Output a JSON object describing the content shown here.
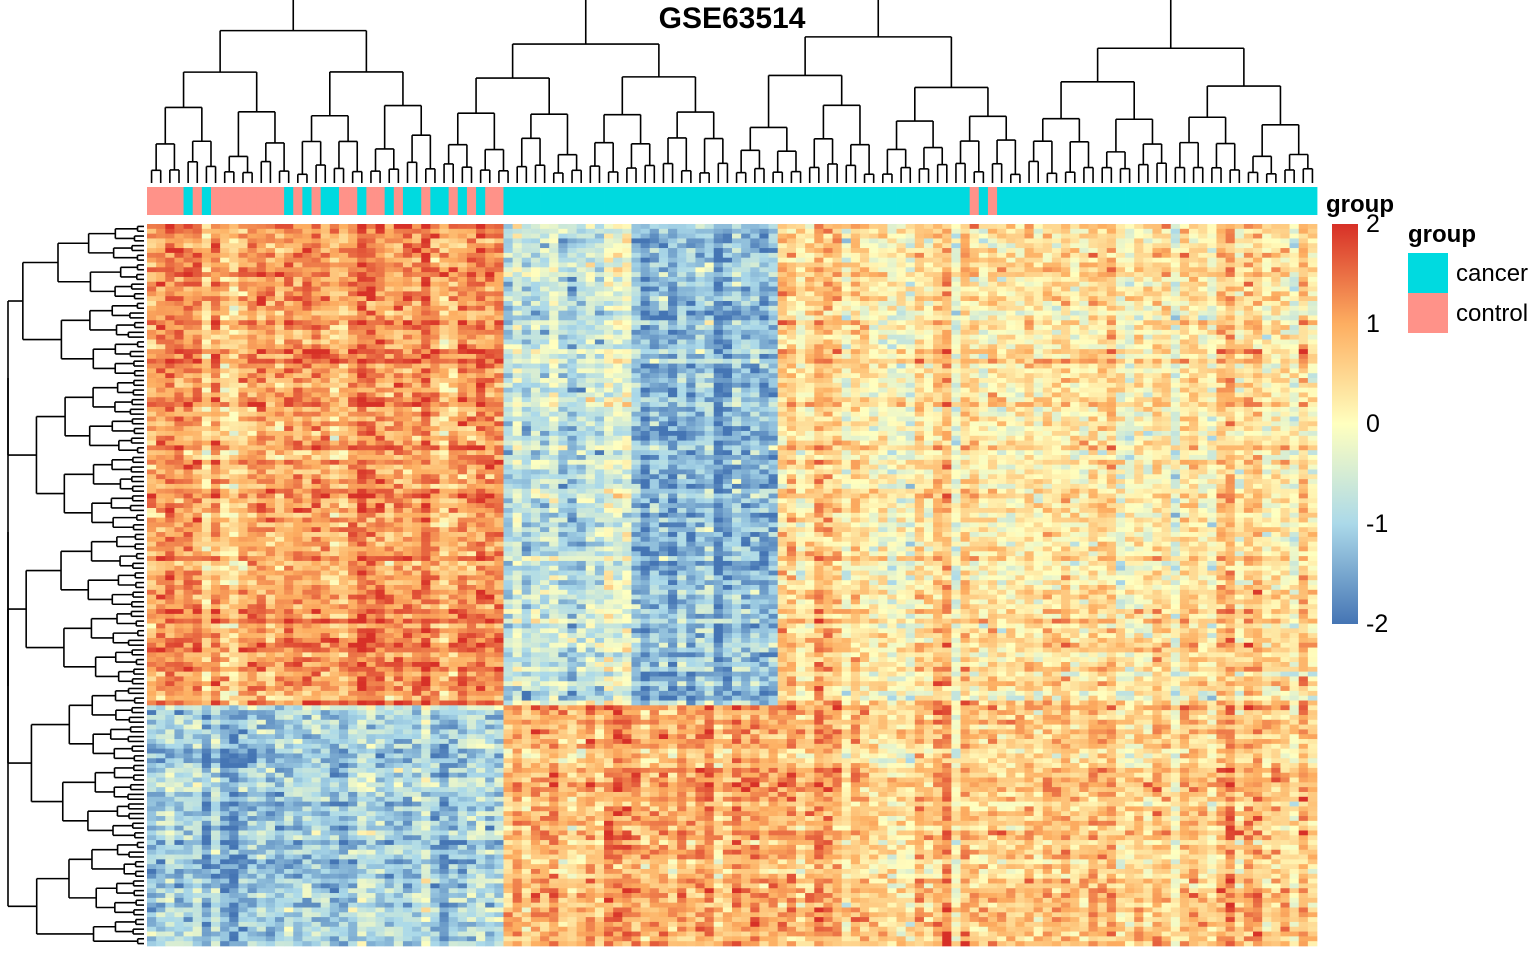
{
  "chart_data": {
    "type": "heatmap",
    "title": "GSE63514",
    "annotation": {
      "name": "group",
      "levels": [
        {
          "label": "cancer",
          "color": "#00DAE0"
        },
        {
          "label": "control",
          "color": "#FF9289"
        }
      ]
    },
    "colorbar": {
      "title": "group",
      "range": [
        -2,
        2
      ],
      "ticks": [
        "2",
        "1",
        "0",
        "-1",
        "-2"
      ],
      "colors": [
        "#4575B4",
        "#E0F3F8",
        "#FFFFBF",
        "#FEE090",
        "#D73027"
      ]
    },
    "n_columns": 128,
    "n_rows": 150,
    "column_groups": "control,control,control,control,cancer,control,cancer,control,control,control,control,control,control,control,control,cancer,control,cancer,control,cancer,cancer,control,control,cancer,control,control,cancer,control,cancer,cancer,control,cancer,cancer,control,cancer,control,cancer,control,control,cancer,cancer,cancer,cancer,cancer,cancer,cancer,cancer,cancer,cancer,cancer,cancer,cancer,cancer,cancer,cancer,cancer,cancer,cancer,cancer,cancer,cancer,cancer,cancer,cancer,cancer,cancer,cancer,cancer,cancer,cancer,cancer,cancer,cancer,cancer,cancer,cancer,cancer,cancer,cancer,cancer,cancer,cancer,cancer,cancer,cancer,cancer,cancer,cancer,cancer,cancer,control,cancer,control,cancer,cancer,cancer,cancer,cancer,cancer,cancer,cancer,cancer,cancer,cancer,cancer,cancer,cancer,cancer,cancer,cancer,cancer,cancer,cancer,cancer,cancer,cancer,cancer,cancer,cancer,cancer,cancer,cancer,cancer,cancer,cancer,cancer,cancer,cancer",
    "pattern": {
      "row_blocks": [
        {
          "rows": "top cluster (~1-100)",
          "control_columns": 1.1,
          "cancer_columns_left": -0.8,
          "cancer_columns_right": 0.5
        },
        {
          "rows": "bottom cluster (~100-150)",
          "control_columns": -1.2,
          "cancer_columns_left": 0.9,
          "cancer_columns_right": 0.7
        }
      ]
    }
  }
}
